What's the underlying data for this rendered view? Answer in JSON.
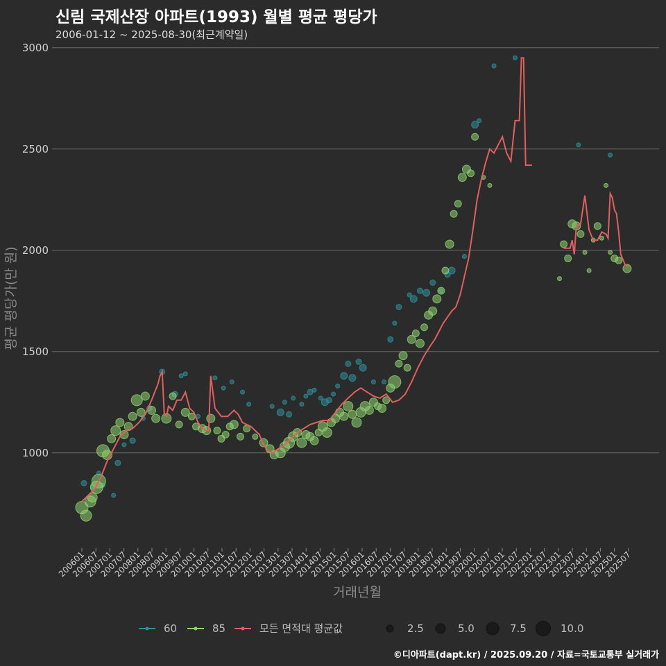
{
  "chart_data": {
    "type": "line+scatter",
    "title": "신림 국제산장 아파트(1993) 월별 평균 평당가",
    "subtitle": "2006-01-12 ~ 2025-08-30(최근계약일)",
    "caption": "©디아파트(dapt.kr) / 2025.09.20 / 자료=국토교통부 실거래가",
    "xlabel": "거래년월",
    "ylabel": "평균 평당가(만 원)",
    "y_ticks": [
      1000,
      1500,
      2000,
      2500,
      3000
    ],
    "ylim": [
      530,
      3030
    ],
    "x_tick_labels": [
      "200601",
      "200607",
      "200701",
      "200707",
      "200801",
      "200807",
      "200901",
      "200907",
      "201001",
      "201007",
      "201101",
      "201107",
      "201201",
      "201207",
      "201301",
      "201307",
      "201401",
      "201407",
      "201501",
      "201507",
      "201601",
      "201607",
      "201701",
      "201707",
      "201801",
      "201807",
      "201901",
      "201907",
      "202001",
      "202007",
      "202101",
      "202107",
      "202201",
      "202207",
      "202301",
      "202307",
      "202401",
      "202407",
      "202501",
      "202507"
    ],
    "grid": true,
    "legend": {
      "area_title": "",
      "areas": [
        {
          "label": "60",
          "color": "#2f8f9c"
        },
        {
          "label": "85",
          "color": "#8fd16f"
        },
        {
          "label": "모든 면적대 평균값",
          "color": "#e06060"
        }
      ],
      "sizes": [
        {
          "label": "2.5",
          "value": 2.5
        },
        {
          "label": "5.0",
          "value": 5.0
        },
        {
          "label": "7.5",
          "value": 7.5
        },
        {
          "label": "10.0",
          "value": 10.0
        }
      ]
    },
    "line_series": {
      "name": "모든 면적대 평균값",
      "color": "#e06060",
      "points": [
        [
          0,
          760
        ],
        [
          3,
          790
        ],
        [
          6,
          820
        ],
        [
          9,
          880
        ],
        [
          12,
          960
        ],
        [
          15,
          1020
        ],
        [
          18,
          1080
        ],
        [
          21,
          1110
        ],
        [
          24,
          1120
        ],
        [
          27,
          1150
        ],
        [
          30,
          1190
        ],
        [
          33,
          1260
        ],
        [
          36,
          1340
        ],
        [
          37,
          1380
        ],
        [
          38,
          1400
        ],
        [
          39,
          1190
        ],
        [
          40,
          1180
        ],
        [
          41,
          1230
        ],
        [
          43,
          1210
        ],
        [
          45,
          1260
        ],
        [
          47,
          1260
        ],
        [
          49,
          1300
        ],
        [
          51,
          1220
        ],
        [
          53,
          1200
        ],
        [
          55,
          1150
        ],
        [
          57,
          1120
        ],
        [
          59,
          1110
        ],
        [
          60,
          1110
        ],
        [
          61,
          1380
        ],
        [
          63,
          1220
        ],
        [
          66,
          1180
        ],
        [
          69,
          1180
        ],
        [
          72,
          1210
        ],
        [
          74,
          1190
        ],
        [
          76,
          1150
        ],
        [
          78,
          1140
        ],
        [
          80,
          1130
        ],
        [
          82,
          1110
        ],
        [
          84,
          1090
        ],
        [
          86,
          1040
        ],
        [
          88,
          1010
        ],
        [
          90,
          1000
        ],
        [
          93,
          1020
        ],
        [
          96,
          1040
        ],
        [
          99,
          1070
        ],
        [
          102,
          1100
        ],
        [
          105,
          1120
        ],
        [
          108,
          1140
        ],
        [
          111,
          1150
        ],
        [
          114,
          1160
        ],
        [
          117,
          1160
        ],
        [
          120,
          1200
        ],
        [
          123,
          1240
        ],
        [
          126,
          1270
        ],
        [
          129,
          1300
        ],
        [
          132,
          1320
        ],
        [
          135,
          1300
        ],
        [
          138,
          1280
        ],
        [
          141,
          1270
        ],
        [
          144,
          1290
        ],
        [
          147,
          1250
        ],
        [
          150,
          1260
        ],
        [
          153,
          1290
        ],
        [
          156,
          1350
        ],
        [
          159,
          1420
        ],
        [
          162,
          1480
        ],
        [
          165,
          1530
        ],
        [
          167,
          1560
        ],
        [
          169,
          1600
        ],
        [
          171,
          1640
        ],
        [
          173,
          1670
        ],
        [
          175,
          1700
        ],
        [
          177,
          1720
        ],
        [
          179,
          1780
        ],
        [
          181,
          1870
        ],
        [
          183,
          1960
        ],
        [
          185,
          2100
        ],
        [
          187,
          2250
        ],
        [
          189,
          2350
        ],
        [
          191,
          2430
        ],
        [
          193,
          2500
        ],
        [
          195,
          2480
        ],
        [
          197,
          2520
        ],
        [
          199,
          2560
        ],
        [
          201,
          2480
        ],
        [
          203,
          2440
        ],
        [
          205,
          2640
        ],
        [
          207,
          2640
        ],
        [
          208,
          2950
        ],
        [
          209,
          2950
        ],
        [
          210,
          2420
        ],
        [
          213,
          2420
        ],
        [
          214,
          null
        ],
        [
          228,
          2010
        ],
        [
          231,
          2010
        ],
        [
          232,
          2050
        ],
        [
          233,
          1980
        ],
        [
          234,
          2120
        ],
        [
          236,
          2130
        ],
        [
          238,
          2270
        ],
        [
          240,
          2100
        ],
        [
          242,
          2050
        ],
        [
          244,
          2050
        ],
        [
          246,
          2090
        ],
        [
          248,
          2080
        ],
        [
          249,
          2060
        ],
        [
          250,
          2280
        ],
        [
          251,
          2260
        ],
        [
          252,
          2200
        ],
        [
          253,
          2180
        ],
        [
          254,
          2090
        ],
        [
          255,
          1980
        ],
        [
          257,
          1930
        ],
        [
          259,
          1920
        ]
      ]
    },
    "scatter_series": [
      {
        "name": "60",
        "color": "#2f8f9c",
        "points": [
          [
            1,
            850,
            4
          ],
          [
            5,
            830,
            3
          ],
          [
            8,
            900,
            3
          ],
          [
            10,
            840,
            3
          ],
          [
            15,
            790,
            3
          ],
          [
            17,
            950,
            4
          ],
          [
            20,
            1040,
            3
          ],
          [
            24,
            1060,
            4
          ],
          [
            29,
            1170,
            3
          ],
          [
            32,
            1220,
            4
          ],
          [
            38,
            1400,
            4
          ],
          [
            44,
            1290,
            4
          ],
          [
            47,
            1380,
            3
          ],
          [
            49,
            1390,
            3
          ],
          [
            55,
            1180,
            3
          ],
          [
            63,
            1370,
            3
          ],
          [
            67,
            1320,
            3
          ],
          [
            71,
            1350,
            3
          ],
          [
            76,
            1300,
            3
          ],
          [
            79,
            1240,
            3
          ],
          [
            90,
            1230,
            3
          ],
          [
            94,
            1200,
            5
          ],
          [
            96,
            1250,
            3
          ],
          [
            98,
            1190,
            4
          ],
          [
            100,
            1270,
            3
          ],
          [
            104,
            1240,
            3
          ],
          [
            106,
            1280,
            3
          ],
          [
            108,
            1300,
            4
          ],
          [
            110,
            1310,
            3
          ],
          [
            113,
            1270,
            3
          ],
          [
            115,
            1250,
            5
          ],
          [
            117,
            1260,
            4
          ],
          [
            119,
            1290,
            3
          ],
          [
            121,
            1330,
            3
          ],
          [
            124,
            1380,
            5
          ],
          [
            126,
            1440,
            4
          ],
          [
            128,
            1370,
            5
          ],
          [
            131,
            1450,
            4
          ],
          [
            133,
            1420,
            5
          ],
          [
            138,
            1350,
            3
          ],
          [
            143,
            1350,
            3
          ],
          [
            146,
            1560,
            4
          ],
          [
            148,
            1640,
            3
          ],
          [
            150,
            1720,
            4
          ],
          [
            155,
            1780,
            3
          ],
          [
            157,
            1760,
            5
          ],
          [
            160,
            1800,
            4
          ],
          [
            163,
            1790,
            5
          ],
          [
            166,
            1840,
            4
          ],
          [
            170,
            1800,
            3
          ],
          [
            173,
            1880,
            4
          ],
          [
            175,
            1900,
            5
          ],
          [
            181,
            1970,
            3
          ],
          [
            186,
            2620,
            5
          ],
          [
            188,
            2640,
            3
          ],
          [
            195,
            2910,
            3
          ],
          [
            205,
            2950,
            3
          ],
          [
            235,
            2520,
            3
          ],
          [
            250,
            2470,
            3
          ]
        ]
      },
      {
        "name": "85",
        "color": "#8fd16f",
        "points": [
          [
            0,
            730,
            9
          ],
          [
            2,
            690,
            8
          ],
          [
            4,
            760,
            8
          ],
          [
            5,
            780,
            7
          ],
          [
            7,
            830,
            9
          ],
          [
            8,
            860,
            10
          ],
          [
            10,
            1010,
            9
          ],
          [
            12,
            990,
            7
          ],
          [
            14,
            1070,
            6
          ],
          [
            16,
            1110,
            7
          ],
          [
            18,
            1150,
            6
          ],
          [
            20,
            1090,
            6
          ],
          [
            22,
            1130,
            6
          ],
          [
            24,
            1180,
            6
          ],
          [
            26,
            1260,
            8
          ],
          [
            28,
            1200,
            6
          ],
          [
            30,
            1280,
            6
          ],
          [
            33,
            1210,
            6
          ],
          [
            35,
            1170,
            6
          ],
          [
            40,
            1170,
            7
          ],
          [
            43,
            1280,
            5
          ],
          [
            46,
            1140,
            5
          ],
          [
            49,
            1200,
            6
          ],
          [
            52,
            1180,
            5
          ],
          [
            54,
            1130,
            5
          ],
          [
            57,
            1120,
            6
          ],
          [
            59,
            1110,
            6
          ],
          [
            61,
            1170,
            6
          ],
          [
            64,
            1110,
            5
          ],
          [
            66,
            1070,
            5
          ],
          [
            68,
            1090,
            5
          ],
          [
            70,
            1130,
            5
          ],
          [
            72,
            1140,
            6
          ],
          [
            75,
            1080,
            5
          ],
          [
            78,
            1120,
            5
          ],
          [
            82,
            1080,
            4
          ],
          [
            86,
            1050,
            6
          ],
          [
            89,
            1020,
            6
          ],
          [
            91,
            990,
            6
          ],
          [
            94,
            1000,
            7
          ],
          [
            96,
            1030,
            7
          ],
          [
            98,
            1050,
            8
          ],
          [
            100,
            1080,
            7
          ],
          [
            102,
            1100,
            6
          ],
          [
            104,
            1050,
            7
          ],
          [
            106,
            1090,
            6
          ],
          [
            108,
            1080,
            6
          ],
          [
            110,
            1060,
            6
          ],
          [
            112,
            1100,
            5
          ],
          [
            114,
            1130,
            7
          ],
          [
            116,
            1100,
            7
          ],
          [
            118,
            1150,
            6
          ],
          [
            120,
            1170,
            6
          ],
          [
            122,
            1200,
            6
          ],
          [
            124,
            1180,
            6
          ],
          [
            126,
            1230,
            7
          ],
          [
            128,
            1190,
            6
          ],
          [
            130,
            1150,
            7
          ],
          [
            132,
            1200,
            7
          ],
          [
            134,
            1230,
            7
          ],
          [
            136,
            1210,
            6
          ],
          [
            138,
            1250,
            6
          ],
          [
            140,
            1230,
            5
          ],
          [
            142,
            1220,
            6
          ],
          [
            144,
            1260,
            5
          ],
          [
            146,
            1320,
            6
          ],
          [
            148,
            1350,
            9
          ],
          [
            150,
            1440,
            5
          ],
          [
            152,
            1480,
            6
          ],
          [
            154,
            1420,
            5
          ],
          [
            156,
            1560,
            6
          ],
          [
            158,
            1590,
            5
          ],
          [
            160,
            1540,
            6
          ],
          [
            162,
            1620,
            5
          ],
          [
            164,
            1680,
            6
          ],
          [
            166,
            1700,
            6
          ],
          [
            168,
            1760,
            6
          ],
          [
            170,
            1800,
            5
          ],
          [
            172,
            1900,
            5
          ],
          [
            174,
            2030,
            6
          ],
          [
            176,
            2180,
            5
          ],
          [
            178,
            2230,
            5
          ],
          [
            180,
            2360,
            6
          ],
          [
            182,
            2400,
            6
          ],
          [
            184,
            2380,
            5
          ],
          [
            186,
            2560,
            5
          ],
          [
            190,
            2360,
            3
          ],
          [
            193,
            2320,
            3
          ],
          [
            226,
            1860,
            3
          ],
          [
            228,
            2030,
            5
          ],
          [
            230,
            1960,
            5
          ],
          [
            232,
            2130,
            6
          ],
          [
            234,
            2120,
            6
          ],
          [
            236,
            2080,
            5
          ],
          [
            238,
            1990,
            3
          ],
          [
            240,
            1900,
            3
          ],
          [
            242,
            2050,
            3
          ],
          [
            244,
            2120,
            5
          ],
          [
            246,
            2060,
            3
          ],
          [
            248,
            2320,
            3
          ],
          [
            250,
            1990,
            3
          ],
          [
            252,
            1960,
            5
          ],
          [
            254,
            1950,
            5
          ],
          [
            258,
            1910,
            6
          ]
        ]
      }
    ]
  }
}
